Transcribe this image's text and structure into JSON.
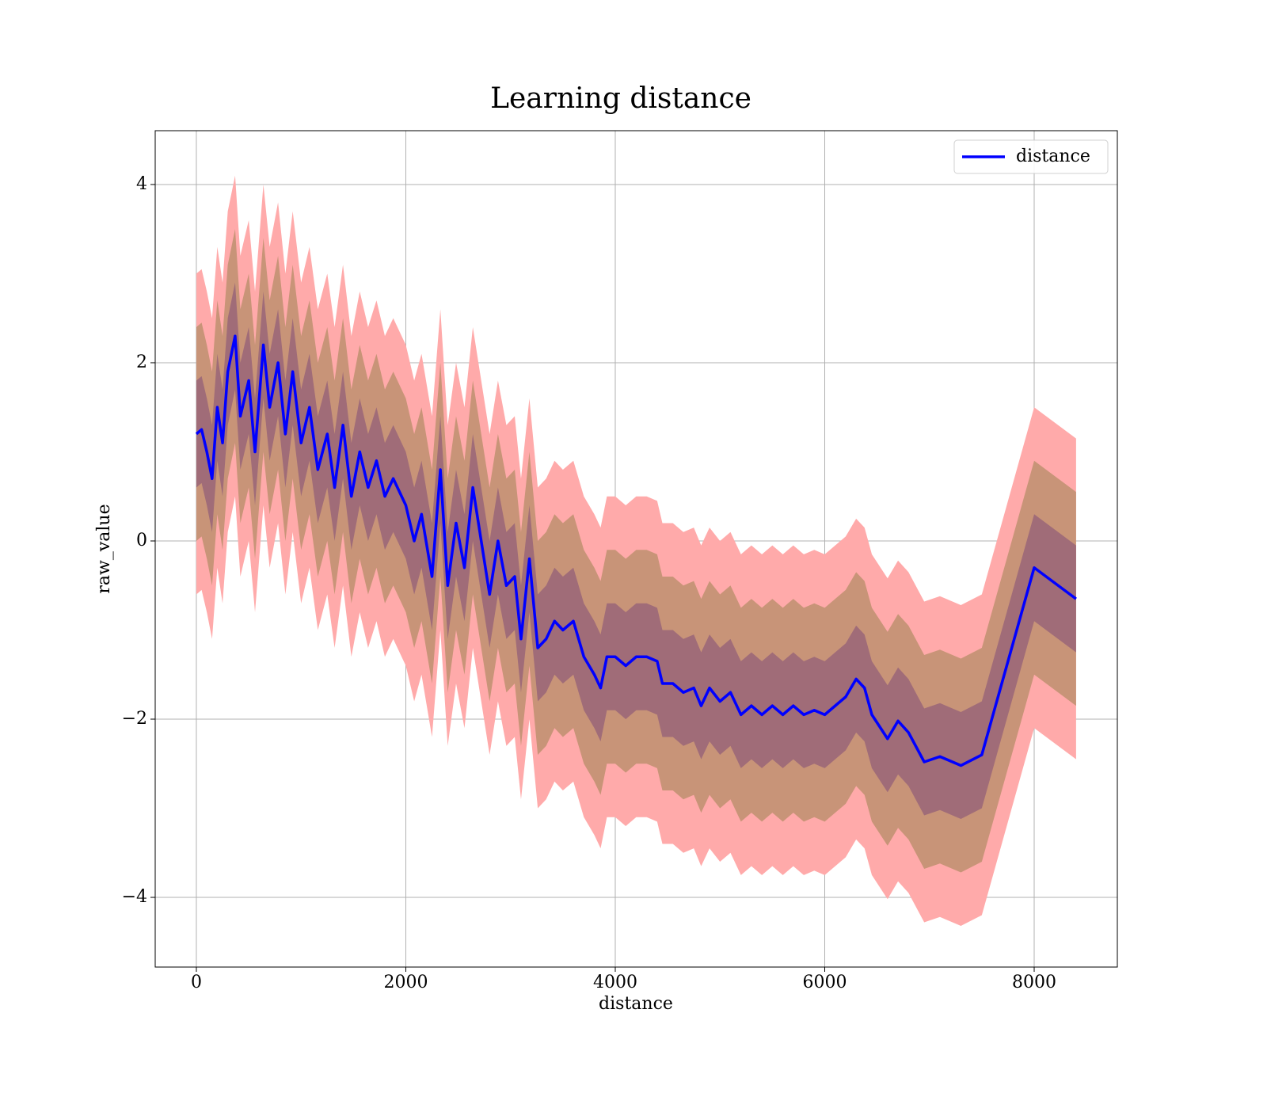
{
  "chart_data": {
    "type": "line",
    "title": "Learning distance",
    "x_label": "distance",
    "y_label": "raw_value",
    "x": [
      0,
      50,
      100,
      150,
      200,
      250,
      300,
      370,
      420,
      500,
      560,
      640,
      700,
      780,
      850,
      920,
      1000,
      1080,
      1160,
      1250,
      1320,
      1400,
      1480,
      1560,
      1640,
      1720,
      1800,
      1880,
      2000,
      2080,
      2150,
      2250,
      2330,
      2400,
      2480,
      2560,
      2640,
      2720,
      2800,
      2880,
      2960,
      3040,
      3100,
      3180,
      3260,
      3340,
      3420,
      3500,
      3600,
      3700,
      3800,
      3860,
      3920,
      4000,
      4100,
      4200,
      4300,
      4400,
      4450,
      4550,
      4650,
      4750,
      4820,
      4900,
      5000,
      5100,
      5200,
      5300,
      5400,
      5500,
      5600,
      5700,
      5800,
      5900,
      6000,
      6100,
      6200,
      6300,
      6380,
      6450,
      6600,
      6700,
      6800,
      6950,
      7100,
      7300,
      7500,
      8000,
      8400
    ],
    "series": [
      {
        "name": "distance",
        "color": "#0000ff",
        "values": [
          1.2,
          1.25,
          1.0,
          0.7,
          1.5,
          1.1,
          1.9,
          2.3,
          1.4,
          1.8,
          1.0,
          2.2,
          1.5,
          2.0,
          1.2,
          1.9,
          1.1,
          1.5,
          0.8,
          1.2,
          0.6,
          1.3,
          0.5,
          1.0,
          0.6,
          0.9,
          0.5,
          0.7,
          0.4,
          0.0,
          0.3,
          -0.4,
          0.8,
          -0.5,
          0.2,
          -0.3,
          0.6,
          0.0,
          -0.6,
          0.0,
          -0.5,
          -0.4,
          -1.1,
          -0.2,
          -1.2,
          -1.1,
          -0.9,
          -1.0,
          -0.9,
          -1.3,
          -1.5,
          -1.65,
          -1.3,
          -1.3,
          -1.4,
          -1.3,
          -1.3,
          -1.35,
          -1.6,
          -1.6,
          -1.7,
          -1.65,
          -1.85,
          -1.65,
          -1.8,
          -1.7,
          -1.95,
          -1.85,
          -1.95,
          -1.85,
          -1.95,
          -1.85,
          -1.95,
          -1.9,
          -1.95,
          -1.85,
          -1.75,
          -1.55,
          -1.65,
          -1.95,
          -2.22,
          -2.02,
          -2.15,
          -2.48,
          -2.42,
          -2.52,
          -2.4,
          -0.3,
          -0.65
        ]
      }
    ],
    "bands": [
      {
        "color": "#ffaaaa",
        "error": 1.8
      },
      {
        "color": "#c89478",
        "error": 1.2
      },
      {
        "color": "#a06c78",
        "error": 0.6
      }
    ],
    "xlim": [
      -393,
      8794
    ],
    "ylim": [
      -4.782,
      4.604
    ],
    "xticks": [
      0,
      2000,
      4000,
      6000,
      8000
    ],
    "yticks": [
      {
        "value": -4,
        "label": "−4"
      },
      {
        "value": -2,
        "label": "−2"
      },
      0,
      2,
      4
    ],
    "grid": true,
    "legend": "upper right"
  }
}
